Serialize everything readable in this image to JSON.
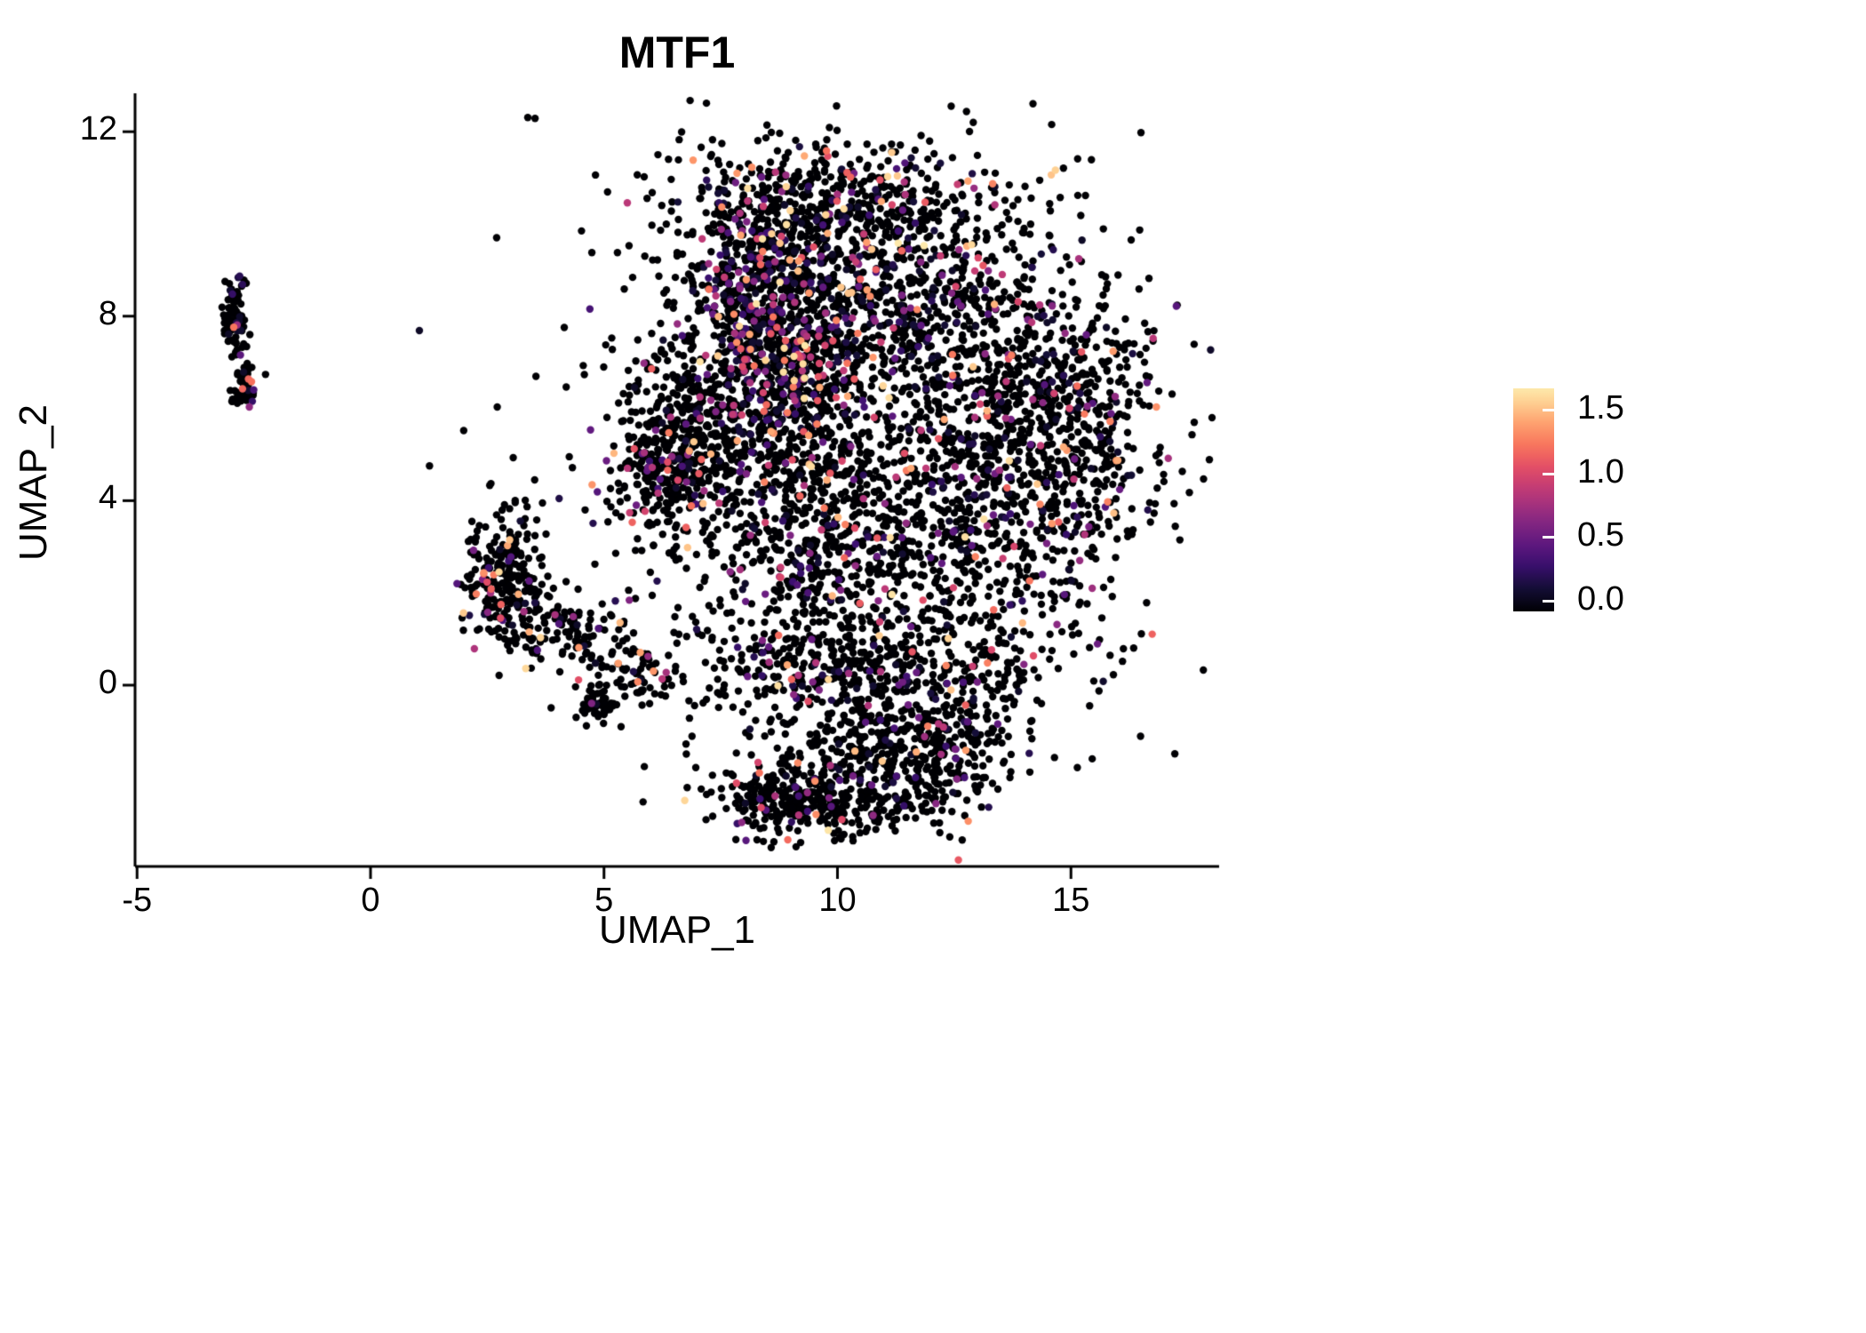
{
  "chart_data": {
    "type": "scatter",
    "title": "MTF1",
    "xlabel": "UMAP_1",
    "ylabel": "UMAP_2",
    "x_ticks": [
      {
        "value": -5,
        "label": "-5"
      },
      {
        "value": 0,
        "label": "0"
      },
      {
        "value": 5,
        "label": "5"
      },
      {
        "value": 10,
        "label": "10"
      },
      {
        "value": 15,
        "label": "15"
      }
    ],
    "y_ticks": [
      {
        "value": 0,
        "label": "0"
      },
      {
        "value": 4,
        "label": "4"
      },
      {
        "value": 8,
        "label": "8"
      },
      {
        "value": 12,
        "label": "12"
      }
    ],
    "xlim": [
      -5.6,
      18.2
    ],
    "ylim": [
      -3.8,
      12.6
    ],
    "grid": false,
    "legend": {
      "position": "right",
      "ticks": [
        {
          "value": 1.5,
          "label": "1.5"
        },
        {
          "value": 1.0,
          "label": "1.0"
        },
        {
          "value": 0.5,
          "label": "0.5"
        },
        {
          "value": 0.0,
          "label": "0.0"
        }
      ],
      "value_min": 0.0,
      "value_max": 1.75
    },
    "colormap": {
      "name": "magma",
      "stops": [
        [
          0.0,
          "#000004"
        ],
        [
          0.1,
          "#140e36"
        ],
        [
          0.2,
          "#3b0f70"
        ],
        [
          0.3,
          "#641a80"
        ],
        [
          0.4,
          "#8c2981"
        ],
        [
          0.5,
          "#b73779"
        ],
        [
          0.6,
          "#de4968"
        ],
        [
          0.7,
          "#f7705c"
        ],
        [
          0.8,
          "#fe9f6d"
        ],
        [
          0.9,
          "#fed395"
        ],
        [
          1.0,
          "#fcfdbf"
        ]
      ]
    },
    "zero_expression_color": "#000004",
    "axis_color": "#000000",
    "background_color": "#ffffff",
    "point_radius_px": 4.2,
    "seed": 42,
    "expression_model": {
      "value_min": 0.12,
      "value_span": 1.55,
      "skew_power": 2.2
    },
    "clusters": [
      {
        "name": "left-small-upper",
        "cx": -2.9,
        "cy": 8.0,
        "sx": 0.13,
        "sy": 0.45,
        "n": 90,
        "p": 0.15
      },
      {
        "name": "left-small-lower",
        "cx": -2.72,
        "cy": 6.45,
        "sx": 0.11,
        "sy": 0.27,
        "n": 60,
        "p": 0.2
      },
      {
        "name": "mid-left-main",
        "cx": 2.8,
        "cy": 2.3,
        "sx": 0.45,
        "sy": 0.75,
        "n": 220,
        "p": 0.12
      },
      {
        "name": "mid-left-tail",
        "cx": 4.0,
        "cy": 1.2,
        "sx": 0.75,
        "sy": 0.45,
        "n": 130,
        "p": 0.1
      },
      {
        "name": "mid-left-blob",
        "cx": 4.85,
        "cy": -0.45,
        "sx": 0.22,
        "sy": 0.26,
        "n": 50,
        "p": 0.15
      },
      {
        "name": "mid-left-scatter",
        "cx": 5.7,
        "cy": 0.3,
        "sx": 0.5,
        "sy": 0.35,
        "n": 50,
        "p": 0.08
      },
      {
        "name": "main-upper-left",
        "cx": 8.9,
        "cy": 7.8,
        "sx": 1.1,
        "sy": 1.5,
        "n": 620,
        "p": 0.28
      },
      {
        "name": "main-upper-right",
        "cx": 11.3,
        "cy": 8.6,
        "sx": 1.4,
        "sy": 1.2,
        "n": 500,
        "p": 0.2
      },
      {
        "name": "main-right",
        "cx": 13.9,
        "cy": 6.2,
        "sx": 1.2,
        "sy": 1.6,
        "n": 470,
        "p": 0.15
      },
      {
        "name": "main-lower-right",
        "cx": 12.6,
        "cy": 3.6,
        "sx": 1.7,
        "sy": 1.5,
        "n": 500,
        "p": 0.15
      },
      {
        "name": "main-lower-left",
        "cx": 9.6,
        "cy": 3.2,
        "sx": 1.3,
        "sy": 1.9,
        "n": 520,
        "p": 0.17
      },
      {
        "name": "main-left-edge",
        "cx": 6.3,
        "cy": 4.9,
        "sx": 0.55,
        "sy": 0.85,
        "n": 280,
        "p": 0.13
      },
      {
        "name": "main-left-mid",
        "cx": 7.3,
        "cy": 5.9,
        "sx": 0.8,
        "sy": 1.2,
        "n": 300,
        "p": 0.16
      },
      {
        "name": "main-bottom-band",
        "cx": 10.4,
        "cy": 0.4,
        "sx": 2.3,
        "sy": 0.55,
        "n": 380,
        "p": 0.11
      },
      {
        "name": "bottom-lobe",
        "cx": 10.9,
        "cy": -1.6,
        "sx": 1.4,
        "sy": 0.75,
        "n": 360,
        "p": 0.1
      },
      {
        "name": "bottom-lobe-left",
        "cx": 9.0,
        "cy": -2.4,
        "sx": 0.7,
        "sy": 0.45,
        "n": 150,
        "p": 0.08
      },
      {
        "name": "main-top-edge",
        "cx": 10.2,
        "cy": 10.7,
        "sx": 1.6,
        "sy": 0.55,
        "n": 260,
        "p": 0.13
      },
      {
        "name": "main-right-edge",
        "cx": 15.4,
        "cy": 5.6,
        "sx": 0.75,
        "sy": 1.6,
        "n": 220,
        "p": 0.1
      },
      {
        "name": "main-filler",
        "cx": 10.8,
        "cy": 5.2,
        "sx": 3.3,
        "sy": 3.2,
        "n": 900,
        "p": 0.15
      },
      {
        "name": "hot-zone-1",
        "cx": 8.2,
        "cy": 8.1,
        "sx": 0.5,
        "sy": 0.8,
        "n": 150,
        "p": 0.4
      },
      {
        "name": "hot-zone-2",
        "cx": 9.3,
        "cy": 6.8,
        "sx": 0.45,
        "sy": 0.65,
        "n": 120,
        "p": 0.45
      },
      {
        "name": "bottom-lobe-right",
        "cx": 12.2,
        "cy": -1.2,
        "sx": 0.8,
        "sy": 0.7,
        "n": 160,
        "p": 0.1
      },
      {
        "name": "bottom-rim",
        "cx": 9.8,
        "cy": -2.6,
        "sx": 1.2,
        "sy": 0.35,
        "n": 170,
        "p": 0.07
      },
      {
        "name": "main-top-left",
        "cx": 8.3,
        "cy": 9.7,
        "sx": 0.9,
        "sy": 0.9,
        "n": 220,
        "p": 0.18
      }
    ]
  }
}
